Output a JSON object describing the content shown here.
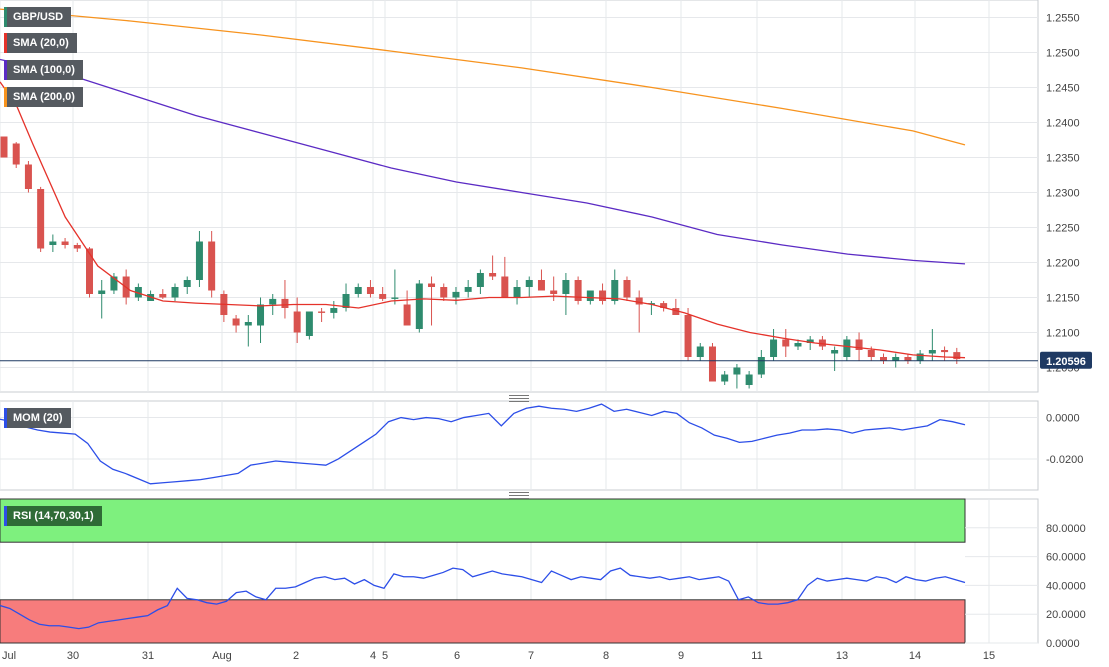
{
  "instrument": "GBP/USD",
  "indicators": {
    "sma20": "SMA (20,0)",
    "sma100": "SMA (100,0)",
    "sma200": "SMA (200,0)",
    "mom": "MOM (20)",
    "rsi": "RSI (14,70,30,1)"
  },
  "colors": {
    "up": "#2e8b6e",
    "down": "#d9534f",
    "sma20": "#e5322a",
    "sma100": "#5b2bc4",
    "sma200": "#f7931e",
    "mom": "#2c4ee8",
    "rsi": "#2c4ee8",
    "rsi_overbought_fill": "#7ef07e",
    "rsi_oversold_fill": "#f77c7c",
    "price_label_bg": "#1f3a63"
  },
  "chart_data": [
    {
      "type": "candlestick",
      "panel": "price",
      "x_tick_labels": [
        "Jul",
        "30",
        "31",
        "Aug",
        "2",
        "4",
        "5",
        "6",
        "7",
        "8",
        "9",
        "11",
        "13",
        "14",
        "15"
      ],
      "y_ticks": [
        "1.2550",
        "1.2500",
        "1.2450",
        "1.2400",
        "1.2350",
        "1.2300",
        "1.2250",
        "1.2200",
        "1.2150",
        "1.2100",
        "1.2050"
      ],
      "ylim": [
        1.2015,
        1.2575
      ],
      "current_price": "1.20596",
      "grid": true,
      "candles": [
        [
          1.238,
          1.238,
          1.235,
          1.235
        ],
        [
          1.237,
          1.2372,
          1.2335,
          1.234
        ],
        [
          1.234,
          1.2345,
          1.23,
          1.2305
        ],
        [
          1.2305,
          1.2308,
          1.2215,
          1.222
        ],
        [
          1.2225,
          1.224,
          1.2215,
          1.223
        ],
        [
          1.223,
          1.2235,
          1.222,
          1.2225
        ],
        [
          1.2225,
          1.2228,
          1.2215,
          1.222
        ],
        [
          1.222,
          1.2222,
          1.215,
          1.2155
        ],
        [
          1.2155,
          1.2175,
          1.212,
          1.216
        ],
        [
          1.216,
          1.2185,
          1.2155,
          1.218
        ],
        [
          1.218,
          1.219,
          1.214,
          1.215
        ],
        [
          1.215,
          1.217,
          1.2145,
          1.2165
        ],
        [
          1.2145,
          1.216,
          1.2145,
          1.2155
        ],
        [
          1.2155,
          1.2162,
          1.2148,
          1.215
        ],
        [
          1.215,
          1.217,
          1.2145,
          1.2165
        ],
        [
          1.2165,
          1.218,
          1.2155,
          1.2175
        ],
        [
          1.2175,
          1.2245,
          1.2165,
          1.223
        ],
        [
          1.223,
          1.2245,
          1.215,
          1.216
        ],
        [
          1.2155,
          1.216,
          1.2115,
          1.2125
        ],
        [
          1.212,
          1.2125,
          1.21,
          1.211
        ],
        [
          1.211,
          1.2125,
          1.208,
          1.2115
        ],
        [
          1.211,
          1.215,
          1.2085,
          1.214
        ],
        [
          1.214,
          1.2155,
          1.2125,
          1.2148
        ],
        [
          1.2148,
          1.2175,
          1.212,
          1.2135
        ],
        [
          1.213,
          1.215,
          1.2085,
          1.21
        ],
        [
          1.2095,
          1.213,
          1.209,
          1.213
        ],
        [
          1.213,
          1.2135,
          1.2115,
          1.2128
        ],
        [
          1.2128,
          1.2145,
          1.212,
          1.2135
        ],
        [
          1.2135,
          1.217,
          1.213,
          1.2155
        ],
        [
          1.2155,
          1.217,
          1.215,
          1.2165
        ],
        [
          1.2165,
          1.2175,
          1.215,
          1.2155
        ],
        [
          1.2155,
          1.2165,
          1.2145,
          1.2148
        ],
        [
          1.2148,
          1.219,
          1.214,
          1.215
        ],
        [
          1.214,
          1.216,
          1.211,
          1.211
        ],
        [
          1.2105,
          1.2175,
          1.21,
          1.217
        ],
        [
          1.217,
          1.218,
          1.211,
          1.2165
        ],
        [
          1.2165,
          1.217,
          1.2145,
          1.215
        ],
        [
          1.215,
          1.2165,
          1.214,
          1.2158
        ],
        [
          1.2158,
          1.2175,
          1.215,
          1.2165
        ],
        [
          1.2165,
          1.219,
          1.2155,
          1.2185
        ],
        [
          1.2185,
          1.221,
          1.2175,
          1.218
        ],
        [
          1.218,
          1.2208,
          1.215,
          1.215
        ],
        [
          1.215,
          1.2175,
          1.214,
          1.2165
        ],
        [
          1.2165,
          1.218,
          1.215,
          1.2175
        ],
        [
          1.2175,
          1.219,
          1.2165,
          1.216
        ],
        [
          1.216,
          1.218,
          1.2145,
          1.2155
        ],
        [
          1.2155,
          1.2185,
          1.2125,
          1.2175
        ],
        [
          1.2175,
          1.218,
          1.214,
          1.2145
        ],
        [
          1.2145,
          1.216,
          1.214,
          1.216
        ],
        [
          1.216,
          1.217,
          1.214,
          1.2145
        ],
        [
          1.2145,
          1.219,
          1.214,
          1.2175
        ],
        [
          1.2175,
          1.218,
          1.2145,
          1.215
        ],
        [
          1.215,
          1.216,
          1.21,
          1.214
        ],
        [
          1.214,
          1.2145,
          1.2125,
          1.2142
        ],
        [
          1.2142,
          1.2145,
          1.213,
          1.2135
        ],
        [
          1.2135,
          1.2148,
          1.2125,
          1.2125
        ],
        [
          1.2125,
          1.2135,
          1.206,
          1.2065
        ],
        [
          1.2065,
          1.2085,
          1.206,
          1.208
        ],
        [
          1.208,
          1.2085,
          1.203,
          1.203
        ],
        [
          1.203,
          1.2045,
          1.2025,
          1.204
        ],
        [
          1.204,
          1.2055,
          1.202,
          1.205
        ],
        [
          1.2025,
          1.2045,
          1.202,
          1.204
        ],
        [
          1.204,
          1.2075,
          1.2035,
          1.2065
        ],
        [
          1.2065,
          1.2105,
          1.206,
          1.209
        ],
        [
          1.209,
          1.2105,
          1.2065,
          1.208
        ],
        [
          1.208,
          1.209,
          1.2075,
          1.2085
        ],
        [
          1.2085,
          1.2095,
          1.2075,
          1.209
        ],
        [
          1.209,
          1.2095,
          1.2075,
          1.208
        ],
        [
          1.207,
          1.208,
          1.2045,
          1.2075
        ],
        [
          1.2065,
          1.2095,
          1.206,
          1.209
        ],
        [
          1.209,
          1.21,
          1.206,
          1.2075
        ],
        [
          1.2075,
          1.208,
          1.206,
          1.2065
        ],
        [
          1.2065,
          1.207,
          1.2055,
          1.206
        ],
        [
          1.206,
          1.207,
          1.205,
          1.2065
        ],
        [
          1.2065,
          1.207,
          1.2055,
          1.206
        ],
        [
          1.206,
          1.2075,
          1.2055,
          1.207
        ],
        [
          1.207,
          1.2105,
          1.206,
          1.2075
        ],
        [
          1.2075,
          1.208,
          1.206,
          1.2072
        ],
        [
          1.2072,
          1.2078,
          1.2055,
          1.2062
        ]
      ],
      "sma20": [
        [
          0,
          1.2458
        ],
        [
          5,
          1.2425
        ],
        [
          10,
          1.237
        ],
        [
          20,
          1.2265
        ],
        [
          30,
          1.2195
        ],
        [
          40,
          1.216
        ],
        [
          50,
          1.2145
        ],
        [
          60,
          1.2142
        ],
        [
          70,
          1.214
        ],
        [
          80,
          1.2138
        ],
        [
          90,
          1.214
        ],
        [
          100,
          1.214
        ],
        [
          110,
          1.2135
        ],
        [
          120,
          1.2145
        ],
        [
          130,
          1.2148
        ],
        [
          140,
          1.2146
        ],
        [
          150,
          1.215
        ],
        [
          160,
          1.215
        ],
        [
          170,
          1.2152
        ],
        [
          180,
          1.215
        ],
        [
          190,
          1.2148
        ],
        [
          200,
          1.214
        ],
        [
          210,
          1.2128
        ],
        [
          220,
          1.2112
        ],
        [
          230,
          1.21
        ],
        [
          240,
          1.2092
        ],
        [
          250,
          1.2085
        ],
        [
          260,
          1.208
        ],
        [
          270,
          1.2075
        ],
        [
          280,
          1.2068
        ],
        [
          290,
          1.2065
        ],
        [
          296,
          1.2064
        ]
      ],
      "sma100": [
        [
          0,
          1.249
        ],
        [
          20,
          1.247
        ],
        [
          40,
          1.244
        ],
        [
          60,
          1.241
        ],
        [
          80,
          1.2385
        ],
        [
          100,
          1.236
        ],
        [
          120,
          1.2335
        ],
        [
          140,
          1.2315
        ],
        [
          160,
          1.23
        ],
        [
          180,
          1.2285
        ],
        [
          200,
          1.2265
        ],
        [
          220,
          1.224
        ],
        [
          240,
          1.2225
        ],
        [
          260,
          1.2212
        ],
        [
          280,
          1.2203
        ],
        [
          296,
          1.2198
        ]
      ],
      "sma200": [
        [
          0,
          1.2562
        ],
        [
          40,
          1.2545
        ],
        [
          80,
          1.2525
        ],
        [
          120,
          1.2502
        ],
        [
          160,
          1.2478
        ],
        [
          200,
          1.245
        ],
        [
          240,
          1.242
        ],
        [
          280,
          1.2388
        ],
        [
          296,
          1.2368
        ]
      ]
    },
    {
      "type": "line",
      "panel": "momentum",
      "name": "MOM (20)",
      "y_ticks": [
        "0.0000",
        "-0.0200"
      ],
      "ylim": [
        -0.035,
        0.008
      ],
      "values": [
        -0.0008,
        -0.002,
        -0.0045,
        -0.006,
        -0.007,
        -0.0075,
        -0.008,
        -0.0125,
        -0.021,
        -0.025,
        -0.027,
        -0.0295,
        -0.032,
        -0.0315,
        -0.031,
        -0.0305,
        -0.03,
        -0.029,
        -0.028,
        -0.027,
        -0.023,
        -0.022,
        -0.021,
        -0.0215,
        -0.022,
        -0.0225,
        -0.023,
        -0.02,
        -0.016,
        -0.012,
        -0.008,
        -0.002,
        0.0,
        -0.001,
        0.0,
        -0.0005,
        -0.002,
        0.0,
        0.001,
        0.002,
        -0.004,
        0.002,
        0.0045,
        0.0055,
        0.0045,
        0.004,
        0.003,
        0.0045,
        0.0065,
        0.003,
        0.004,
        0.0025,
        0.001,
        0.003,
        0.002,
        -0.0025,
        -0.005,
        -0.0085,
        -0.01,
        -0.012,
        -0.0115,
        -0.01,
        -0.0085,
        -0.0075,
        -0.006,
        -0.006,
        -0.0055,
        -0.006,
        -0.0075,
        -0.006,
        -0.0055,
        -0.005,
        -0.006,
        -0.005,
        -0.004,
        -0.001,
        -0.002,
        -0.0035
      ]
    },
    {
      "type": "line",
      "panel": "rsi",
      "name": "RSI (14,70,30,1)",
      "y_ticks": [
        "80.0000",
        "60.0000",
        "40.0000",
        "20.0000",
        "0.0000"
      ],
      "ylim": [
        0,
        100
      ],
      "overbought": 70,
      "oversold": 30,
      "values": [
        26,
        24,
        20,
        16,
        13,
        12,
        12,
        11,
        10,
        11,
        14,
        15,
        16,
        17,
        18,
        19,
        23,
        26,
        38,
        31,
        30,
        28,
        27,
        29,
        35,
        36,
        32,
        30,
        38,
        38,
        39,
        42,
        45,
        46,
        44,
        45,
        41,
        44,
        40,
        38,
        48,
        46,
        46,
        45,
        47,
        49,
        52,
        51,
        46,
        48,
        50,
        48,
        47,
        46,
        44,
        42,
        50,
        47,
        44,
        46,
        45,
        44,
        50,
        52,
        47,
        46,
        45,
        46,
        44,
        45,
        46,
        44,
        45,
        46,
        43,
        30,
        32,
        28,
        27,
        27,
        28,
        30,
        40,
        45,
        43,
        44,
        45,
        44,
        43,
        46,
        45,
        42,
        46,
        44,
        43,
        45,
        46,
        44,
        42
      ]
    }
  ]
}
